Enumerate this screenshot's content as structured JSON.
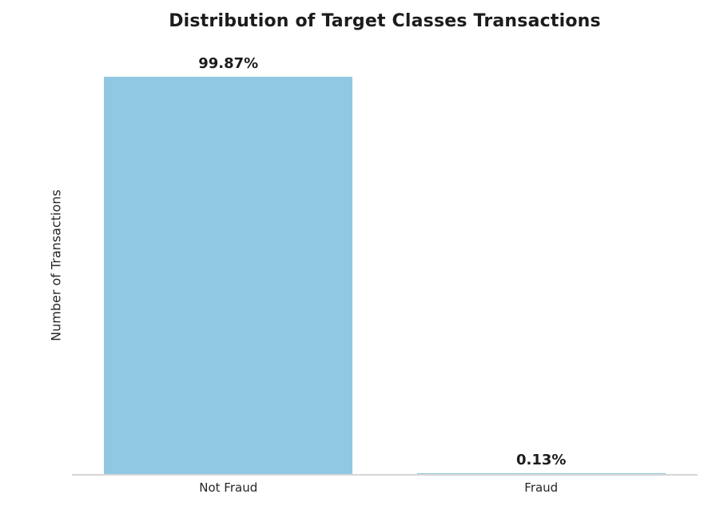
{
  "chart_data": {
    "type": "bar",
    "title": "Distribution of Target Classes Transactions",
    "xlabel": "",
    "ylabel": "Number of Transactions",
    "categories": [
      "Not Fraud",
      "Fraud"
    ],
    "values": [
      99.87,
      0.13
    ],
    "value_labels": [
      "99.87%",
      "0.13%"
    ],
    "ylim": [
      0,
      106.7
    ],
    "grid": false,
    "legend_position": "none",
    "y_ticks_visible": false,
    "bar_color": "#91c8e1",
    "axis_line_color": "#d6d6d6",
    "text_color": "#1c1c1c"
  }
}
